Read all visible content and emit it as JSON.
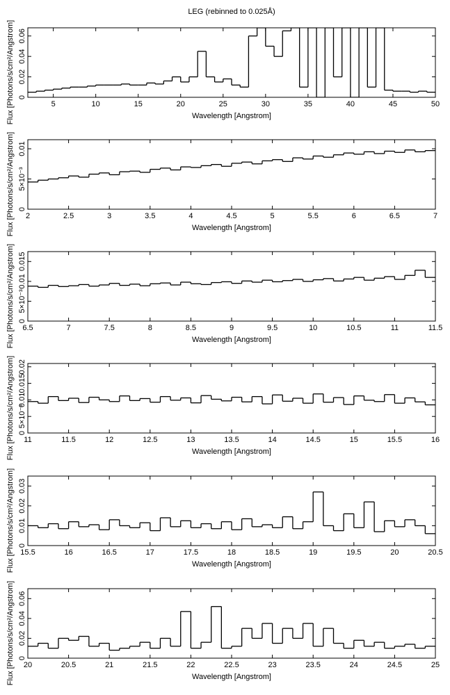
{
  "chart_data": [
    {
      "type": "histogram",
      "title": "LEG (rebinned to 0.025Å)",
      "x_label": "Wavelength [Angstrom]",
      "y_label": "Flux [Photons/s/cm²/Angstrom]",
      "color": "#000000",
      "bins": [
        2,
        3,
        4,
        5,
        6,
        7,
        8,
        9,
        10,
        11,
        12,
        13,
        14,
        15,
        16,
        17,
        18,
        19,
        20,
        21,
        22,
        23,
        24,
        25,
        26,
        27,
        28,
        29,
        30,
        31,
        32,
        33,
        34,
        35,
        36,
        37,
        38,
        39,
        40,
        41,
        42,
        43,
        44,
        45,
        46,
        47,
        48,
        49,
        50
      ],
      "values": [
        0.005,
        0.006,
        0.007,
        0.008,
        0.009,
        0.01,
        0.01,
        0.011,
        0.012,
        0.012,
        0.012,
        0.013,
        0.012,
        0.012,
        0.014,
        0.013,
        0.016,
        0.02,
        0.015,
        0.02,
        0.045,
        0.02,
        0.015,
        0.018,
        0.012,
        0.01,
        0.06,
        0.068,
        0.05,
        0.04,
        0.065,
        0.068,
        0.01,
        0.068,
        0,
        0.068,
        0.02,
        0.068,
        0,
        0.068,
        0.01,
        0.068,
        0.007,
        0.006,
        0.006,
        0.005,
        0.006,
        0.005
      ],
      "xlim": [
        2,
        50
      ],
      "xticks": [
        5,
        10,
        15,
        20,
        25,
        30,
        35,
        40,
        45,
        50
      ],
      "ylim": [
        0,
        0.068
      ],
      "yticks": [
        0,
        0.02,
        0.04,
        0.06
      ]
    },
    {
      "type": "histogram",
      "x_label": "Wavelength [Angstrom]",
      "y_label": "Flux [Photons/s/cm²/Angstrom]",
      "color": "#000000",
      "bins": [
        2,
        2.125,
        2.25,
        2.375,
        2.5,
        2.625,
        2.75,
        2.875,
        3,
        3.125,
        3.25,
        3.375,
        3.5,
        3.625,
        3.75,
        3.875,
        4,
        4.125,
        4.25,
        4.375,
        4.5,
        4.625,
        4.75,
        4.875,
        5,
        5.125,
        5.25,
        5.375,
        5.5,
        5.625,
        5.75,
        5.875,
        6,
        6.125,
        6.25,
        6.375,
        6.5,
        6.625,
        6.75,
        6.875,
        7
      ],
      "values": [
        0.0045,
        0.0048,
        0.005,
        0.0052,
        0.0055,
        0.0053,
        0.0058,
        0.006,
        0.0057,
        0.0062,
        0.0063,
        0.0061,
        0.0066,
        0.0068,
        0.0065,
        0.007,
        0.0069,
        0.0072,
        0.0074,
        0.0071,
        0.0076,
        0.0078,
        0.0075,
        0.008,
        0.0082,
        0.0079,
        0.0085,
        0.0083,
        0.0088,
        0.0086,
        0.009,
        0.0093,
        0.0091,
        0.0095,
        0.0092,
        0.0096,
        0.0094,
        0.0098,
        0.0095,
        0.0097
      ],
      "xlim": [
        2,
        7
      ],
      "xticks": [
        2,
        2.5,
        3,
        3.5,
        4,
        4.5,
        5,
        5.5,
        6,
        6.5,
        7
      ],
      "ylim": [
        0,
        0.0115
      ],
      "yticks": [
        0,
        {
          "value": 0.005,
          "label": "5×10⁻³"
        },
        0.01
      ]
    },
    {
      "type": "histogram",
      "x_label": "Wavelength [Angstrom]",
      "y_label": "Flux [Photons/s/cm²/Angstrom]",
      "color": "#000000",
      "bins": [
        6.5,
        6.625,
        6.75,
        6.875,
        7,
        7.125,
        7.25,
        7.375,
        7.5,
        7.625,
        7.75,
        7.875,
        8,
        8.125,
        8.25,
        8.375,
        8.5,
        8.625,
        8.75,
        8.875,
        9,
        9.125,
        9.25,
        9.375,
        9.5,
        9.625,
        9.75,
        9.875,
        10,
        10.125,
        10.25,
        10.375,
        10.5,
        10.625,
        10.75,
        10.875,
        11,
        11.125,
        11.25,
        11.375,
        11.5
      ],
      "values": [
        0.0088,
        0.0085,
        0.009,
        0.0087,
        0.0089,
        0.0092,
        0.0088,
        0.0091,
        0.0095,
        0.009,
        0.0093,
        0.0089,
        0.0094,
        0.0096,
        0.0091,
        0.0098,
        0.0094,
        0.0092,
        0.0097,
        0.0099,
        0.0095,
        0.0101,
        0.0098,
        0.0103,
        0.0099,
        0.0102,
        0.0105,
        0.01,
        0.0104,
        0.0107,
        0.0101,
        0.0106,
        0.011,
        0.0103,
        0.0108,
        0.0112,
        0.0105,
        0.0115,
        0.0128,
        0.011
      ],
      "xlim": [
        6.5,
        11.5
      ],
      "xticks": [
        6.5,
        7,
        7.5,
        8,
        8.5,
        9,
        9.5,
        10,
        10.5,
        11,
        11.5
      ],
      "ylim": [
        0,
        0.0175
      ],
      "yticks": [
        0,
        {
          "value": 0.005,
          "label": "5×10⁻³"
        },
        0.01,
        0.015
      ]
    },
    {
      "type": "histogram",
      "x_label": "Wavelength [Angstrom]",
      "y_label": "Flux [Photons/s/cm²/Angstrom]",
      "color": "#000000",
      "bins": [
        11,
        11.125,
        11.25,
        11.375,
        11.5,
        11.625,
        11.75,
        11.875,
        12,
        12.125,
        12.25,
        12.375,
        12.5,
        12.625,
        12.75,
        12.875,
        13,
        13.125,
        13.25,
        13.375,
        13.5,
        13.625,
        13.75,
        13.875,
        14,
        14.125,
        14.25,
        14.375,
        14.5,
        14.625,
        14.75,
        14.875,
        15,
        15.125,
        15.25,
        15.375,
        15.5,
        15.625,
        15.75,
        15.875,
        16
      ],
      "values": [
        0.0095,
        0.009,
        0.011,
        0.0098,
        0.0105,
        0.0092,
        0.0108,
        0.01,
        0.0095,
        0.0112,
        0.0098,
        0.0104,
        0.0093,
        0.011,
        0.0099,
        0.0106,
        0.0091,
        0.0113,
        0.0102,
        0.0097,
        0.0108,
        0.0094,
        0.011,
        0.0088,
        0.0115,
        0.0096,
        0.0105,
        0.009,
        0.0118,
        0.0093,
        0.0107,
        0.0086,
        0.0112,
        0.0099,
        0.0095,
        0.0116,
        0.009,
        0.0106,
        0.0094,
        0.0085
      ],
      "xlim": [
        11,
        16
      ],
      "xticks": [
        11,
        11.5,
        12,
        12.5,
        13,
        13.5,
        14,
        14.5,
        15,
        15.5,
        16
      ],
      "ylim": [
        0,
        0.021
      ],
      "yticks": [
        0,
        {
          "value": 0.005,
          "label": "5×10⁻³"
        },
        0.01,
        0.015,
        0.02
      ]
    },
    {
      "type": "histogram",
      "x_label": "Wavelength [Angstrom]",
      "y_label": "Flux [Photons/s/cm²/Angstrom]",
      "color": "#000000",
      "bins": [
        15.5,
        15.625,
        15.75,
        15.875,
        16,
        16.125,
        16.25,
        16.375,
        16.5,
        16.625,
        16.75,
        16.875,
        17,
        17.125,
        17.25,
        17.375,
        17.5,
        17.625,
        17.75,
        17.875,
        18,
        18.125,
        18.25,
        18.375,
        18.5,
        18.625,
        18.75,
        18.875,
        19,
        19.125,
        19.25,
        19.375,
        19.5,
        19.625,
        19.75,
        19.875,
        20,
        20.125,
        20.25,
        20.375,
        20.5
      ],
      "values": [
        0.01,
        0.009,
        0.011,
        0.0085,
        0.012,
        0.0095,
        0.0105,
        0.008,
        0.013,
        0.01,
        0.009,
        0.0115,
        0.0075,
        0.014,
        0.0095,
        0.0125,
        0.009,
        0.011,
        0.0085,
        0.012,
        0.008,
        0.0135,
        0.0095,
        0.0105,
        0.009,
        0.0145,
        0.0085,
        0.012,
        0.027,
        0.01,
        0.0075,
        0.016,
        0.009,
        0.022,
        0.007,
        0.0125,
        0.0095,
        0.013,
        0.01,
        0.006
      ],
      "xlim": [
        15.5,
        20.5
      ],
      "xticks": [
        15.5,
        16,
        16.5,
        17,
        17.5,
        18,
        18.5,
        19,
        19.5,
        20,
        20.5
      ],
      "ylim": [
        0,
        0.035
      ],
      "yticks": [
        0,
        0.01,
        0.02,
        0.03
      ]
    },
    {
      "type": "histogram",
      "x_label": "Wavelength [Angstrom]",
      "y_label": "Flux [Photons/s/cm²/Angstrom]",
      "color": "#000000",
      "bins": [
        20,
        20.125,
        20.25,
        20.375,
        20.5,
        20.625,
        20.75,
        20.875,
        21,
        21.125,
        21.25,
        21.375,
        21.5,
        21.625,
        21.75,
        21.875,
        22,
        22.125,
        22.25,
        22.375,
        22.5,
        22.625,
        22.75,
        22.875,
        23,
        23.125,
        23.25,
        23.375,
        23.5,
        23.625,
        23.75,
        23.875,
        24,
        24.125,
        24.25,
        24.375,
        24.5,
        24.625,
        24.75,
        24.875,
        25
      ],
      "values": [
        0.012,
        0.015,
        0.01,
        0.02,
        0.018,
        0.022,
        0.012,
        0.015,
        0.008,
        0.01,
        0.012,
        0.016,
        0.01,
        0.02,
        0.012,
        0.047,
        0.01,
        0.016,
        0.052,
        0.01,
        0.012,
        0.03,
        0.02,
        0.035,
        0.015,
        0.03,
        0.02,
        0.035,
        0.012,
        0.03,
        0.015,
        0.01,
        0.018,
        0.012,
        0.016,
        0.01,
        0.012,
        0.014,
        0.01,
        0.012
      ],
      "xlim": [
        20,
        25
      ],
      "xticks": [
        20,
        20.5,
        21,
        21.5,
        22,
        22.5,
        23,
        23.5,
        24,
        24.5,
        25
      ],
      "ylim": [
        0,
        0.07
      ],
      "yticks": [
        0,
        0.02,
        0.04,
        0.06
      ]
    }
  ]
}
